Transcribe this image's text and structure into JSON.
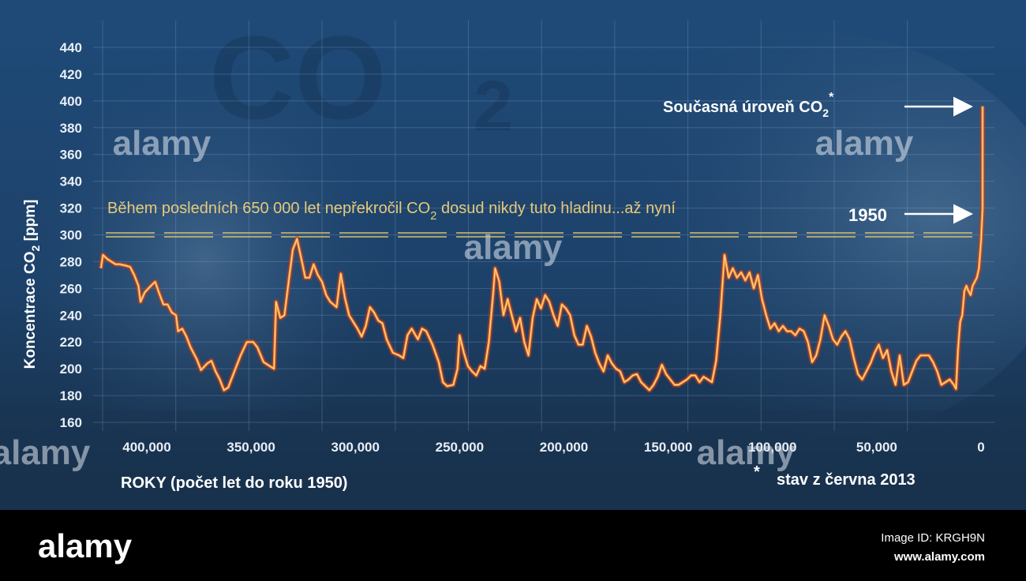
{
  "chart_data": {
    "type": "line",
    "ylabel_prefix": "Koncentrace CO",
    "ylabel_sub": "2",
    "ylabel_suffix": " [ppm]",
    "xlabel": "ROKY  (počet let do roku 1950)",
    "ylim": [
      150,
      450
    ],
    "y_ticks": [
      160,
      180,
      200,
      220,
      240,
      260,
      280,
      300,
      320,
      340,
      360,
      380,
      400,
      420,
      440
    ],
    "x_reversed": true,
    "x_ticks": [
      "400,000",
      "350,000",
      "300,000",
      "250,000",
      "200,000",
      "150,000",
      "100,000",
      "50,000",
      "0"
    ],
    "x_tick_values": [
      400000,
      350000,
      300000,
      250000,
      200000,
      150000,
      100000,
      50000,
      0
    ],
    "grid": true,
    "threshold_line": {
      "value": 300,
      "style": "dashed-double",
      "color": "#d8c070"
    },
    "threshold_text_prefix": "Během posledních 650 000 let nepřekročil CO",
    "threshold_text_sub": "2",
    "threshold_text_suffix": " dosud nikdy tuto hladinu...až nyní",
    "annotation_current_prefix": "Současná úroveň CO",
    "annotation_current_sub": "2",
    "annotation_current_star": "*",
    "annotation_1950": "1950",
    "footnote_star": "*",
    "footnote": "stav z června 2013",
    "background_title_main": "CO",
    "background_title_sub": "2",
    "series": [
      {
        "color": "#f28a2c",
        "points": [
          [
            422000,
            275
          ],
          [
            421000,
            285
          ],
          [
            419000,
            282
          ],
          [
            417000,
            280
          ],
          [
            415000,
            278
          ],
          [
            413000,
            278
          ],
          [
            410000,
            277
          ],
          [
            408000,
            276
          ],
          [
            406000,
            270
          ],
          [
            404000,
            262
          ],
          [
            403000,
            250
          ],
          [
            401000,
            257
          ],
          [
            398000,
            262
          ],
          [
            396000,
            265
          ],
          [
            394000,
            256
          ],
          [
            392000,
            248
          ],
          [
            390000,
            248
          ],
          [
            388000,
            242
          ],
          [
            386000,
            240
          ],
          [
            385000,
            228
          ],
          [
            383000,
            230
          ],
          [
            381000,
            224
          ],
          [
            379000,
            216
          ],
          [
            376000,
            207
          ],
          [
            374000,
            199
          ],
          [
            371000,
            204
          ],
          [
            369000,
            206
          ],
          [
            367000,
            198
          ],
          [
            365000,
            192
          ],
          [
            363000,
            184
          ],
          [
            361000,
            186
          ],
          [
            358000,
            198
          ],
          [
            355000,
            210
          ],
          [
            352000,
            220
          ],
          [
            349000,
            220
          ],
          [
            347000,
            216
          ],
          [
            344000,
            205
          ],
          [
            341000,
            202
          ],
          [
            339000,
            200
          ],
          [
            338000,
            250
          ],
          [
            336000,
            238
          ],
          [
            334000,
            240
          ],
          [
            332000,
            265
          ],
          [
            330000,
            289
          ],
          [
            328000,
            297
          ],
          [
            326000,
            283
          ],
          [
            324000,
            268
          ],
          [
            322000,
            268
          ],
          [
            320000,
            278
          ],
          [
            318000,
            270
          ],
          [
            316000,
            265
          ],
          [
            314000,
            255
          ],
          [
            312000,
            250
          ],
          [
            309000,
            246
          ],
          [
            307000,
            271
          ],
          [
            305000,
            253
          ],
          [
            303000,
            240
          ],
          [
            301000,
            235
          ],
          [
            299000,
            230
          ],
          [
            297000,
            224
          ],
          [
            295000,
            232
          ],
          [
            293000,
            246
          ],
          [
            291000,
            242
          ],
          [
            289000,
            236
          ],
          [
            287000,
            234
          ],
          [
            285000,
            222
          ],
          [
            282000,
            212
          ],
          [
            279000,
            210
          ],
          [
            277000,
            208
          ],
          [
            275000,
            225
          ],
          [
            273000,
            230
          ],
          [
            270000,
            222
          ],
          [
            268000,
            230
          ],
          [
            266000,
            228
          ],
          [
            263000,
            218
          ],
          [
            260000,
            205
          ],
          [
            258000,
            190
          ],
          [
            256000,
            187
          ],
          [
            253000,
            188
          ],
          [
            251000,
            200
          ],
          [
            250000,
            225
          ],
          [
            248000,
            212
          ],
          [
            246000,
            202
          ],
          [
            244000,
            198
          ],
          [
            242000,
            195
          ],
          [
            240000,
            202
          ],
          [
            238000,
            200
          ],
          [
            236000,
            220
          ],
          [
            234000,
            255
          ],
          [
            233000,
            275
          ],
          [
            231000,
            265
          ],
          [
            229000,
            240
          ],
          [
            227000,
            252
          ],
          [
            225000,
            240
          ],
          [
            223000,
            228
          ],
          [
            221000,
            238
          ],
          [
            219000,
            220
          ],
          [
            217000,
            210
          ],
          [
            215000,
            238
          ],
          [
            213000,
            252
          ],
          [
            211000,
            245
          ],
          [
            209000,
            255
          ],
          [
            207000,
            250
          ],
          [
            205000,
            240
          ],
          [
            203000,
            232
          ],
          [
            201000,
            248
          ],
          [
            199000,
            245
          ],
          [
            197000,
            240
          ],
          [
            195000,
            225
          ],
          [
            193000,
            218
          ],
          [
            191000,
            218
          ],
          [
            189000,
            232
          ],
          [
            187000,
            224
          ],
          [
            185000,
            212
          ],
          [
            183000,
            204
          ],
          [
            181000,
            198
          ],
          [
            179000,
            210
          ],
          [
            177000,
            204
          ],
          [
            175000,
            200
          ],
          [
            173000,
            198
          ],
          [
            171000,
            190
          ],
          [
            169000,
            192
          ],
          [
            167000,
            195
          ],
          [
            165000,
            196
          ],
          [
            163000,
            190
          ],
          [
            161000,
            187
          ],
          [
            159000,
            184
          ],
          [
            157000,
            188
          ],
          [
            155000,
            194
          ],
          [
            153000,
            203
          ],
          [
            151000,
            196
          ],
          [
            149000,
            192
          ],
          [
            147000,
            188
          ],
          [
            145000,
            188
          ],
          [
            143000,
            190
          ],
          [
            141000,
            192
          ],
          [
            139000,
            195
          ],
          [
            137000,
            195
          ],
          [
            135000,
            190
          ],
          [
            133000,
            194
          ],
          [
            131000,
            192
          ],
          [
            129000,
            190
          ],
          [
            127000,
            206
          ],
          [
            125000,
            240
          ],
          [
            123000,
            285
          ],
          [
            121000,
            268
          ],
          [
            119000,
            275
          ],
          [
            117000,
            268
          ],
          [
            115000,
            272
          ],
          [
            113000,
            266
          ],
          [
            111000,
            272
          ],
          [
            109000,
            260
          ],
          [
            107000,
            270
          ],
          [
            105000,
            252
          ],
          [
            103000,
            240
          ],
          [
            101000,
            230
          ],
          [
            99000,
            234
          ],
          [
            97000,
            228
          ],
          [
            95000,
            232
          ],
          [
            93000,
            228
          ],
          [
            91000,
            228
          ],
          [
            89000,
            225
          ],
          [
            87000,
            230
          ],
          [
            85000,
            228
          ],
          [
            83000,
            220
          ],
          [
            81000,
            205
          ],
          [
            79000,
            210
          ],
          [
            77000,
            222
          ],
          [
            75000,
            240
          ],
          [
            73000,
            232
          ],
          [
            71000,
            222
          ],
          [
            69000,
            218
          ],
          [
            67000,
            224
          ],
          [
            65000,
            228
          ],
          [
            63000,
            222
          ],
          [
            61000,
            208
          ],
          [
            59000,
            196
          ],
          [
            57000,
            192
          ],
          [
            55000,
            198
          ],
          [
            53000,
            204
          ],
          [
            51000,
            212
          ],
          [
            49000,
            218
          ],
          [
            47000,
            208
          ],
          [
            45000,
            214
          ],
          [
            43000,
            198
          ],
          [
            41000,
            188
          ],
          [
            39000,
            210
          ],
          [
            37000,
            188
          ],
          [
            35000,
            190
          ],
          [
            33000,
            198
          ],
          [
            31000,
            206
          ],
          [
            29000,
            210
          ],
          [
            27000,
            210
          ],
          [
            25000,
            210
          ],
          [
            23000,
            205
          ],
          [
            21000,
            198
          ],
          [
            19000,
            188
          ],
          [
            17000,
            190
          ],
          [
            15000,
            192
          ],
          [
            13000,
            188
          ],
          [
            12000,
            185
          ],
          [
            11000,
            215
          ],
          [
            10000,
            235
          ],
          [
            9000,
            240
          ],
          [
            8000,
            258
          ],
          [
            7000,
            262
          ],
          [
            6000,
            258
          ],
          [
            5000,
            255
          ],
          [
            4000,
            262
          ],
          [
            3000,
            265
          ],
          [
            2000,
            268
          ],
          [
            1000,
            275
          ],
          [
            500,
            285
          ],
          [
            0,
            295
          ],
          [
            -30,
            320
          ],
          [
            -50,
            355
          ],
          [
            -63,
            396
          ]
        ]
      }
    ]
  },
  "watermarks": [
    "alamy",
    "alamy",
    "alamy",
    "alamy",
    "alamy"
  ],
  "footer": {
    "logo": "alamy",
    "image_id": "Image ID: KRGH9N",
    "url": "www.alamy.com"
  }
}
